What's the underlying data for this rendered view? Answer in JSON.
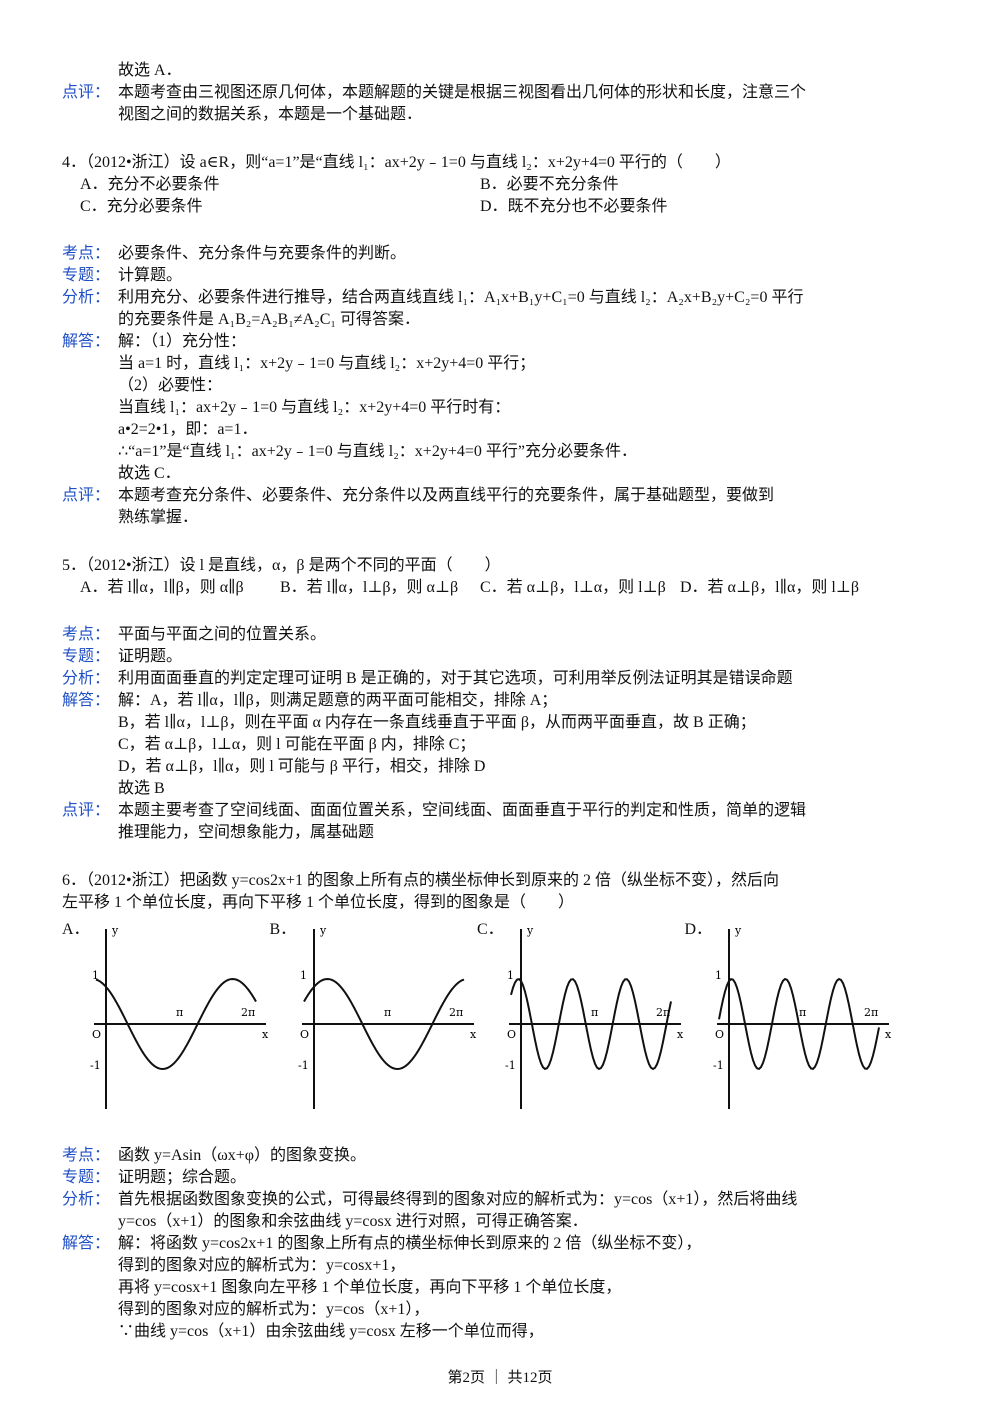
{
  "sections": [
    {
      "notes": [
        {
          "lines": [
            "故选 A．"
          ]
        },
        {
          "label": "点评：",
          "lines": [
            "本题考查由三视图还原几何体，本题解题的关键是根据三视图看出几何体的形状和长度，注意三个",
            "视图之间的数据关系，本题是一个基础题．"
          ]
        }
      ]
    },
    {
      "question": [
        "4．（2012•浙江）设 a∈R，则“a=1”是“直线 l₁：ax+2y﹣1=0 与直线 l₂：x+2y+4=0 平行的（　　）"
      ],
      "options": [
        [
          "A．充分不必要条件",
          "B．必要不充分条件"
        ],
        [
          "C．充分必要条件",
          "D．既不充分也不必要条件"
        ]
      ],
      "notes": [
        {
          "label": "考点：",
          "lines": [
            "必要条件、充分条件与充要条件的判断。"
          ]
        },
        {
          "label": "专题：",
          "lines": [
            "计算题。"
          ]
        },
        {
          "label": "分析：",
          "lines": [
            "利用充分、必要条件进行推导，结合两直线直线 l₁：A₁x+B₁y+C₁=0 与直线 l₂：A₂x+B₂y+C₂=0 平行",
            "的充要条件是 A₁B₂=A₂B₁≠A₂C₁ 可得答案．"
          ]
        },
        {
          "label": "解答：",
          "lines": [
            "解：（1）充分性：",
            "当 a=1 时，直线 l₁：x+2y﹣1=0 与直线 l₂：x+2y+4=0 平行；",
            "（2）必要性：",
            "当直线 l₁：ax+2y﹣1=0 与直线 l₂：x+2y+4=0 平行时有：",
            "a•2=2•1，即：a=1．",
            "∴“a=1”是“直线 l₁：ax+2y﹣1=0 与直线 l₂：x+2y+4=0 平行”充分必要条件．",
            "故选 C．"
          ]
        },
        {
          "label": "点评：",
          "lines": [
            "本题考查充分条件、必要条件、充分条件以及两直线平行的充要条件，属于基础题型，要做到",
            "熟练掌握．"
          ]
        }
      ]
    },
    {
      "question": [
        "5．（2012•浙江）设 l 是直线，α，β 是两个不同的平面（　　）"
      ],
      "options": [
        [
          "A．若 l∥α，l∥β，则 α∥β",
          "B．若 l∥α，l⊥β，则 α⊥β",
          "C．若 α⊥β，l⊥α，则 l⊥β",
          "D．若 α⊥β，l∥α，则 l⊥β"
        ]
      ],
      "notes": [
        {
          "label": "考点：",
          "lines": [
            "平面与平面之间的位置关系。"
          ]
        },
        {
          "label": "专题：",
          "lines": [
            "证明题。"
          ]
        },
        {
          "label": "分析：",
          "lines": [
            "利用面面垂直的判定定理可证明 B 是正确的，对于其它选项，可利用举反例法证明其是错误命题"
          ]
        },
        {
          "label": "解答：",
          "lines": [
            "解：A，若 l∥α，l∥β，则满足题意的两平面可能相交，排除 A；",
            "B，若 l∥α，l⊥β，则在平面 α 内存在一条直线垂直于平面 β，从而两平面垂直，故 B 正确；",
            "C，若 α⊥β，l⊥α，则 l 可能在平面 β 内，排除 C；",
            "D，若 α⊥β，l∥α，则 l 可能与 β 平行，相交，排除 D",
            "故选 B"
          ]
        },
        {
          "label": "点评：",
          "lines": [
            "本题主要考查了空间线面、面面位置关系，空间线面、面面垂直于平行的判定和性质，简单的逻辑",
            "推理能力，空间想象能力，属基础题"
          ]
        }
      ]
    },
    {
      "question": [
        "6．（2012•浙江）把函数 y=cos2x+1 的图象上所有点的横坐标伸长到原来的 2 倍（纵坐标不变），然后向",
        "左平移 1 个单位长度，再向下平移 1 个单位长度，得到的图象是（　　）"
      ],
      "graphs": [
        {
          "letter": "A．",
          "labels": [
            "y",
            "1",
            "O",
            "-1",
            "π",
            "2π",
            "x"
          ]
        },
        {
          "letter": "B．",
          "labels": [
            "y",
            "1",
            "O",
            "-1",
            "π",
            "2π",
            "x"
          ]
        },
        {
          "letter": "C．",
          "labels": [
            "y",
            "1",
            "O",
            "-1",
            "π",
            "2π",
            "x"
          ]
        },
        {
          "letter": "D．",
          "labels": [
            "y",
            "1",
            "O",
            "-1",
            "π",
            "2π",
            "x"
          ]
        }
      ],
      "notes": [
        {
          "label": "考点：",
          "lines": [
            "函数 y=Asin（ωx+φ）的图象变换。"
          ]
        },
        {
          "label": "专题：",
          "lines": [
            "证明题；综合题。"
          ]
        },
        {
          "label": "分析：",
          "lines": [
            "首先根据函数图象变换的公式，可得最终得到的图象对应的解析式为：y=cos（x+1），然后将曲线",
            "y=cos（x+1）的图象和余弦曲线 y=cosx 进行对照，可得正确答案．"
          ]
        },
        {
          "label": "解答：",
          "lines": [
            "解：将函数 y=cos2x+1 的图象上所有点的横坐标伸长到原来的 2 倍（纵坐标不变），",
            "得到的图象对应的解析式为：y=cosx+1，",
            "再将 y=cosx+1 图象向左平移 1 个单位长度，再向下平移 1 个单位长度，",
            "得到的图象对应的解析式为：y=cos（x+1），",
            "∵曲线 y=cos（x+1）由余弦曲线 y=cosx 左移一个单位而得，"
          ]
        }
      ]
    }
  ],
  "footer": "第2页 ｜ 共12页"
}
